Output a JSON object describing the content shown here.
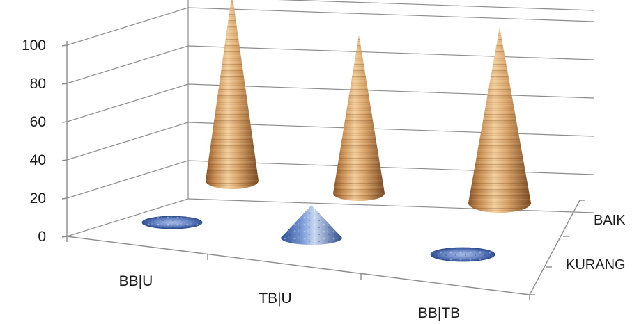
{
  "chart_data": {
    "type": "bar",
    "subtype": "3d-cone",
    "categories": [
      "BB|U",
      "TB|U",
      "BB|TB"
    ],
    "series": [
      {
        "name": "BAIK",
        "values": [
          98,
          83,
          92
        ],
        "style": "wood",
        "color": "#c98a4e"
      },
      {
        "name": "KURANG",
        "values": [
          1,
          17,
          1
        ],
        "style": "blue-marble",
        "color": "#5a78b8"
      }
    ],
    "depth_labels": [
      "BAIK",
      "KURANG"
    ],
    "y_ticks": [
      "0",
      "20",
      "40",
      "60",
      "80",
      "100"
    ],
    "ylim": [
      0,
      100
    ],
    "grid": true,
    "legend": "none"
  }
}
